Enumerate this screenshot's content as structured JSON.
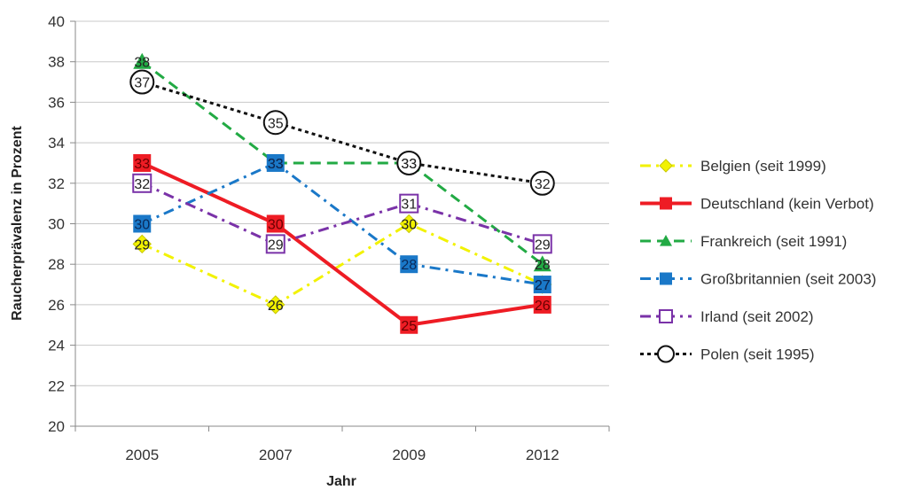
{
  "chart_data": {
    "type": "line",
    "title": "",
    "xlabel": "Jahr",
    "ylabel": "Raucherprävalenz in Prozent",
    "ylim": [
      20,
      40
    ],
    "yticks": [
      "20",
      "22",
      "24",
      "26",
      "28",
      "30",
      "32",
      "34",
      "36",
      "38",
      "40"
    ],
    "categories": [
      "2005",
      "2007",
      "2009",
      "2012"
    ],
    "grid": true,
    "legend_position": "right",
    "series": [
      {
        "name": "Belgien (seit 1999)",
        "values": [
          29,
          26,
          30,
          27
        ],
        "color": "#f2f200",
        "dash": "dashdot",
        "marker": "diamond"
      },
      {
        "name": "Deutschland (kein Verbot)",
        "values": [
          33,
          30,
          25,
          26
        ],
        "color": "#ee1c24",
        "dash": "solid",
        "marker": "square"
      },
      {
        "name": "Frankreich (seit 1991)",
        "values": [
          38,
          33,
          33,
          28
        ],
        "color": "#22aa44",
        "dash": "dash",
        "marker": "triangle"
      },
      {
        "name": "Großbritannien (seit 2003)",
        "values": [
          30,
          33,
          28,
          27
        ],
        "color": "#1a78c8",
        "dash": "dashdot",
        "marker": "square"
      },
      {
        "name": "Irland (seit 2002)",
        "values": [
          32,
          29,
          31,
          29
        ],
        "color": "#7a32a8",
        "dash": "dashdot",
        "marker": "open-square"
      },
      {
        "name": "Polen (seit 1995)",
        "values": [
          37,
          35,
          33,
          32
        ],
        "color": "#111111",
        "dash": "dot",
        "marker": "open-circle"
      }
    ]
  }
}
